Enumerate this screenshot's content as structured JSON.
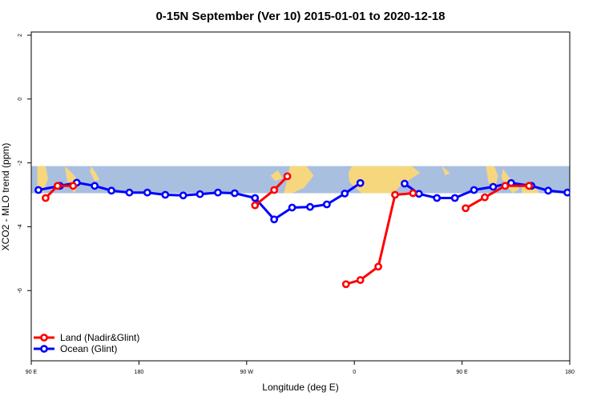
{
  "chart_data": {
    "type": "line",
    "title": "0-15N September (Ver 10)   2015-01-01 to 2020-12-18",
    "xlabel": "Longitude (deg E)",
    "ylabel": "XCO2 - MLO trend (ppm)",
    "x_ticks": [
      {
        "value": -90,
        "label": "90 E"
      },
      {
        "value": 0,
        "label": "180"
      },
      {
        "value": 90,
        "label": "90 W"
      },
      {
        "value": 180,
        "label": "0"
      },
      {
        "value": 270,
        "label": "90 E"
      },
      {
        "value": 360,
        "label": "180"
      }
    ],
    "y_ticks": [
      {
        "value": 2,
        "label": "2"
      },
      {
        "value": 0,
        "label": "0"
      },
      {
        "value": -2,
        "label": "-2"
      },
      {
        "value": -4,
        "label": "-4"
      },
      {
        "value": -6,
        "label": "-6"
      }
    ],
    "xlim": [
      -90,
      360
    ],
    "ylim": [
      -8.2,
      2.1
    ],
    "map_band": {
      "ymin": -2.95,
      "ymax": -2.1,
      "ocean_color": "#a9bfdf",
      "land_color": "#f7d77e"
    },
    "legend_position": "bottom-left",
    "series": [
      {
        "name": "Land (Nadir&Glint)",
        "color": "#ff0000",
        "segments": [
          {
            "x": [
              -78,
              -68,
              -55
            ],
            "y": [
              -3.1,
              -2.72,
              -2.72
            ]
          },
          {
            "x": [
              97,
              113,
              124
            ],
            "y": [
              -3.33,
              -2.85,
              -2.42
            ]
          },
          {
            "x": [
              173,
              185,
              200,
              214,
              229
            ],
            "y": [
              -5.8,
              -5.67,
              -5.25,
              -3.0,
              -2.95
            ]
          },
          {
            "x": [
              273,
              289,
              306,
              326
            ],
            "y": [
              -3.42,
              -3.08,
              -2.72,
              -2.72
            ]
          }
        ]
      },
      {
        "name": "Ocean (Glint)",
        "color": "#0000ff",
        "segments": [
          {
            "x": [
              -84,
              -66,
              -52,
              -37,
              -23,
              -8,
              7,
              22,
              37,
              51,
              66,
              80,
              97,
              113,
              128,
              143,
              157,
              172,
              185
            ],
            "y": [
              -2.85,
              -2.72,
              -2.62,
              -2.72,
              -2.87,
              -2.93,
              -2.93,
              -3.0,
              -3.02,
              -2.98,
              -2.93,
              -2.95,
              -3.1,
              -3.77,
              -3.4,
              -3.38,
              -3.3,
              -2.96,
              -2.63
            ]
          },
          {
            "x": [
              222,
              234,
              249,
              264,
              280,
              296,
              311,
              328,
              342,
              358
            ],
            "y": [
              -2.65,
              -2.97,
              -3.1,
              -3.1,
              -2.85,
              -2.75,
              -2.63,
              -2.72,
              -2.87,
              -2.93
            ]
          }
        ]
      }
    ]
  }
}
